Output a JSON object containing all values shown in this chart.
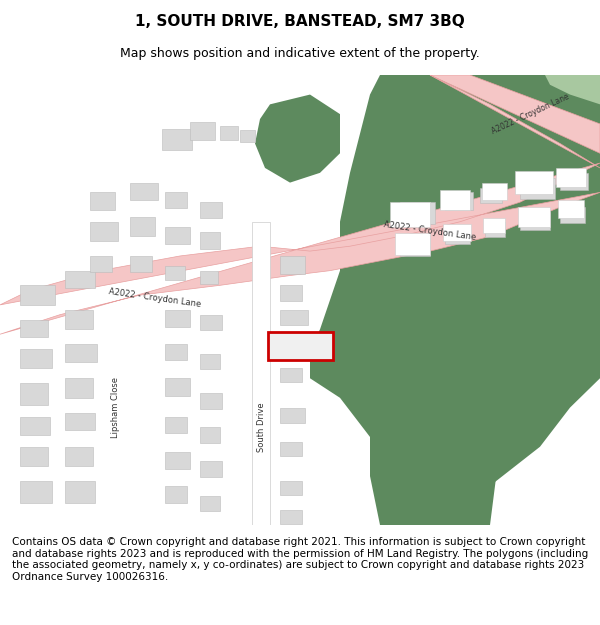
{
  "title": "1, SOUTH DRIVE, BANSTEAD, SM7 3BQ",
  "subtitle": "Map shows position and indicative extent of the property.",
  "footer": "Contains OS data © Crown copyright and database right 2021. This information is subject to Crown copyright and database rights 2023 and is reproduced with the permission of HM Land Registry. The polygons (including the associated geometry, namely x, y co-ordinates) are subject to Crown copyright and database rights 2023 Ordnance Survey 100026316.",
  "bg_color": "#ffffff",
  "map_bg": "#f5f5f5",
  "road_color": "#f5c6c6",
  "road_border": "#e8a0a0",
  "green_color": "#5d8a5e",
  "green_light": "#a8c8a0",
  "building_color": "#d8d8d8",
  "building_border": "#bbbbbb",
  "highlight_color": "#cc0000",
  "title_fontsize": 11,
  "subtitle_fontsize": 9,
  "footer_fontsize": 7.5
}
